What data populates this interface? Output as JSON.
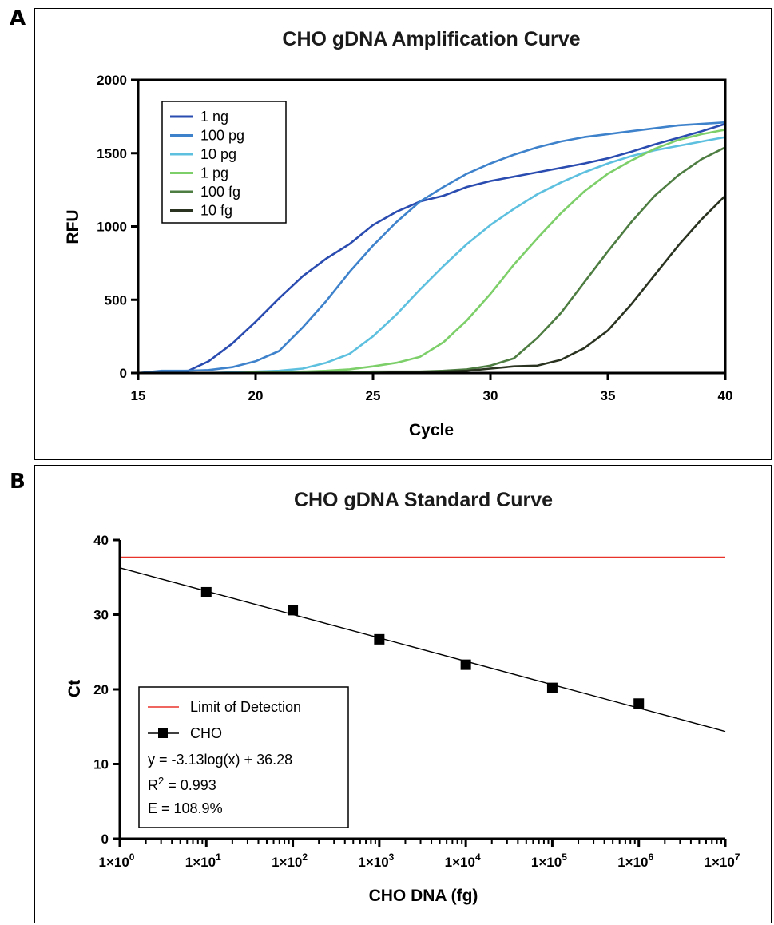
{
  "panels": {
    "a": {
      "letter": "A"
    },
    "b": {
      "letter": "B"
    }
  },
  "chart_data": [
    {
      "type": "line",
      "title": "CHO gDNA Amplification Curve",
      "xlabel": "Cycle",
      "ylabel": "RFU",
      "xlim": [
        15,
        40
      ],
      "ylim": [
        0,
        2000
      ],
      "xticks": [
        15,
        20,
        25,
        30,
        35,
        40
      ],
      "yticks": [
        0,
        500,
        1000,
        1500,
        2000
      ],
      "legend_position": "top-left",
      "x": [
        15,
        16,
        17,
        18,
        19,
        20,
        21,
        22,
        23,
        24,
        25,
        26,
        27,
        28,
        29,
        30,
        31,
        32,
        33,
        34,
        35,
        36,
        37,
        38,
        39,
        40
      ],
      "series": [
        {
          "name": "1 ng",
          "color": "#2a4bb0",
          "values": [
            0,
            0,
            5,
            80,
            200,
            350,
            510,
            660,
            780,
            880,
            1010,
            1100,
            1170,
            1210,
            1270,
            1310,
            1340,
            1370,
            1400,
            1430,
            1465,
            1510,
            1560,
            1605,
            1650,
            1700
          ]
        },
        {
          "name": "100 pg",
          "color": "#3e82cc",
          "values": [
            0,
            15,
            15,
            20,
            40,
            80,
            150,
            310,
            490,
            690,
            870,
            1030,
            1170,
            1270,
            1360,
            1430,
            1490,
            1540,
            1580,
            1610,
            1630,
            1650,
            1670,
            1690,
            1700,
            1710
          ]
        },
        {
          "name": "10 pg",
          "color": "#5ec0df",
          "values": [
            0,
            0,
            0,
            0,
            5,
            10,
            15,
            30,
            70,
            130,
            250,
            400,
            570,
            730,
            880,
            1010,
            1120,
            1220,
            1300,
            1370,
            1430,
            1480,
            1520,
            1550,
            1580,
            1610
          ]
        },
        {
          "name": "1 pg",
          "color": "#7dcf6a",
          "values": [
            0,
            0,
            0,
            0,
            0,
            5,
            5,
            10,
            15,
            25,
            45,
            70,
            110,
            210,
            360,
            540,
            740,
            920,
            1090,
            1240,
            1360,
            1450,
            1530,
            1590,
            1630,
            1660
          ]
        },
        {
          "name": "100 fg",
          "color": "#4e7d42",
          "values": [
            0,
            0,
            0,
            0,
            0,
            0,
            0,
            0,
            5,
            5,
            10,
            10,
            10,
            15,
            25,
            50,
            100,
            240,
            410,
            620,
            830,
            1030,
            1210,
            1350,
            1460,
            1540
          ]
        },
        {
          "name": "10 fg",
          "color": "#2a3320",
          "values": [
            0,
            0,
            0,
            0,
            0,
            0,
            0,
            0,
            0,
            0,
            0,
            5,
            5,
            10,
            15,
            30,
            45,
            50,
            90,
            170,
            290,
            470,
            670,
            870,
            1050,
            1210
          ]
        }
      ]
    },
    {
      "type": "scatter",
      "title": "CHO gDNA Standard Curve",
      "xlabel": "CHO DNA (fg)",
      "ylabel": "Ct",
      "x_scale": "log",
      "xlim": [
        1,
        10000000
      ],
      "ylim": [
        0,
        40
      ],
      "yticks": [
        0,
        10,
        20,
        30,
        40
      ],
      "xtick_labels": [
        "1×10",
        "1×10",
        "1×10",
        "1×10",
        "1×10",
        "1×10",
        "1×10",
        "1×10"
      ],
      "xtick_exponents": [
        "0",
        "1",
        "2",
        "3",
        "4",
        "5",
        "6",
        "7"
      ],
      "legend_position": "bottom-left",
      "series": [
        {
          "name": "CHO",
          "marker": "square",
          "color": "#000000",
          "x": [
            10,
            100,
            1000,
            10000,
            100000,
            1000000
          ],
          "y": [
            33.0,
            30.6,
            26.7,
            23.3,
            20.2,
            18.1
          ]
        }
      ],
      "fit": {
        "slope": -3.13,
        "intercept": 36.28,
        "x_range": [
          1,
          10000000
        ],
        "color": "#000000"
      },
      "limit_line": {
        "name": "Limit of Detection",
        "y": 37.7,
        "color": "#e8332a"
      },
      "annotations": {
        "equation": "y = -3.13log(x) + 36.28",
        "r2_prefix": "R",
        "r2_exp": "2",
        "r2_suffix": " = 0.993",
        "efficiency": "E = 108.9%"
      }
    }
  ]
}
